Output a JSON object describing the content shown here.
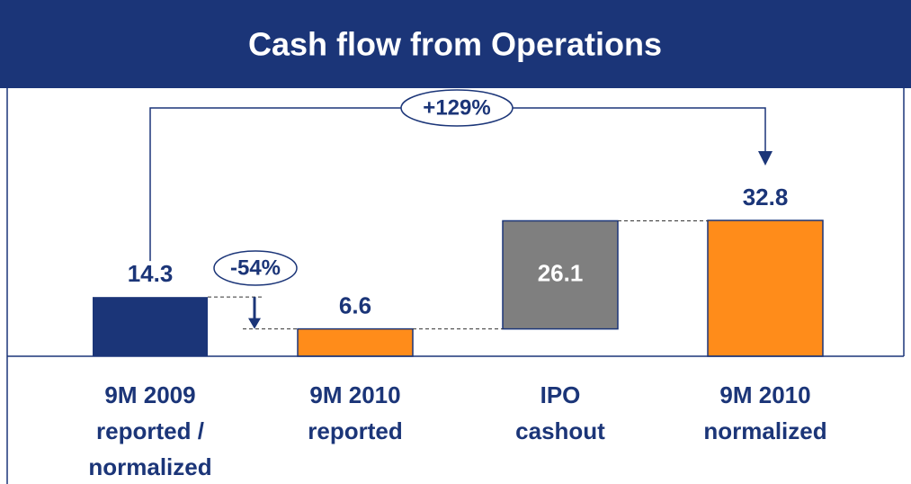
{
  "chart_data": {
    "type": "waterfall",
    "title": "Cash flow from Operations",
    "categories": [
      [
        "9M 2009",
        "reported /",
        "normalized"
      ],
      [
        "9M 2010",
        "reported"
      ],
      [
        "IPO",
        "cashout"
      ],
      [
        "9M 2010",
        "normalized"
      ]
    ],
    "values": [
      14.3,
      6.6,
      26.1,
      32.8
    ],
    "kinds": [
      "total",
      "total",
      "delta",
      "total"
    ],
    "colors": [
      "#1b3578",
      "#ff8c1a",
      "#7f7f7f",
      "#ff8c1a"
    ],
    "annotations": [
      "-54%",
      "+129%"
    ]
  }
}
